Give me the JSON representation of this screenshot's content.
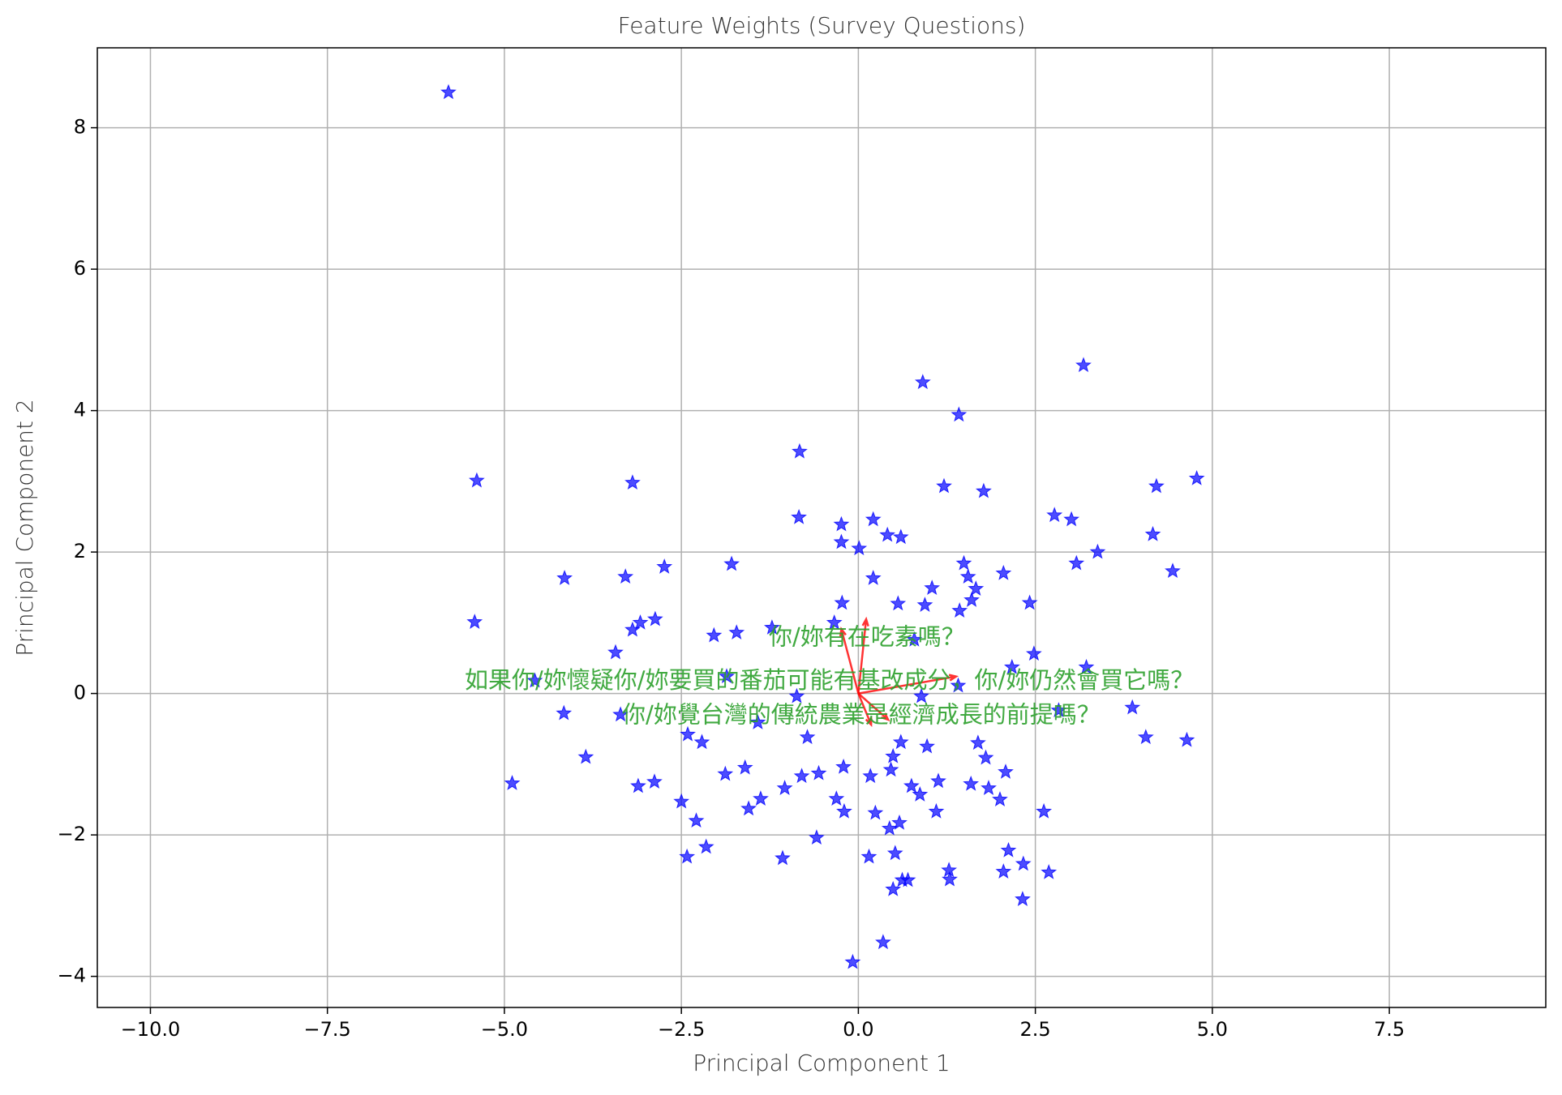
{
  "chart_data": {
    "type": "scatter",
    "title": "Feature Weights (Survey Questions)",
    "x_label": "Principal Component 1",
    "y_label": "Principal Component 2",
    "xlim": [
      -10.75,
      9.71
    ],
    "ylim": [
      -4.44,
      9.13
    ],
    "xticks": [
      {
        "value": -10,
        "label": "−10.0"
      },
      {
        "value": -7.5,
        "label": "−7.5"
      },
      {
        "value": -5,
        "label": "−5.0"
      },
      {
        "value": -2.5,
        "label": "−2.5"
      },
      {
        "value": 0,
        "label": "0.0"
      },
      {
        "value": 2.5,
        "label": "2.5"
      },
      {
        "value": 5,
        "label": "5.0"
      },
      {
        "value": 7.5,
        "label": "7.5"
      }
    ],
    "yticks": [
      {
        "value": -4,
        "label": "−4"
      },
      {
        "value": -2,
        "label": "−2"
      },
      0,
      2,
      4,
      6,
      8
    ],
    "grid": true,
    "series": [
      {
        "color": "#0000ff",
        "x": [
          -5.79,
          -5.39,
          -5.42,
          -4.89,
          -4.15,
          -4.16,
          -3.85,
          -3.43,
          -3.29,
          -3.19,
          -3.19,
          -3.11,
          -3.08,
          -2.88,
          -2.87,
          -2.74,
          -2.5,
          -2.42,
          -2.29,
          -2.21,
          -2.15,
          -2.04,
          -1.88,
          -1.79,
          -1.72,
          -1.6,
          -1.55,
          -1.38,
          -1.22,
          -1.07,
          -1.04,
          -0.83,
          -0.84,
          -0.8,
          -0.59,
          -0.56,
          -0.34,
          -0.31,
          -0.24,
          -0.24,
          -0.23,
          -0.21,
          -0.2,
          -0.08,
          0.01,
          0.15,
          0.17,
          0.21,
          0.21,
          0.24,
          0.35,
          0.41,
          0.44,
          0.46,
          0.49,
          0.52,
          0.49,
          0.56,
          0.6,
          0.6,
          0.62,
          0.58,
          0.7,
          0.75,
          0.79,
          0.87,
          0.91,
          0.94,
          0.97,
          1.04,
          1.1,
          1.13,
          1.21,
          1.28,
          1.29,
          1.42,
          1.43,
          1.49,
          1.55,
          1.59,
          1.6,
          1.66,
          1.69,
          1.77,
          1.8,
          1.84,
          2.0,
          2.05,
          2.05,
          2.08,
          2.12,
          2.33,
          2.32,
          2.42,
          2.62,
          2.69,
          2.77,
          3.01,
          3.08,
          3.18,
          3.22,
          3.38,
          3.87,
          4.06,
          4.16,
          4.21,
          4.44,
          4.64,
          4.78,
          -4.57,
          -3.36,
          -2.41,
          -1.42,
          -0.72,
          2.17,
          2.48,
          1.41,
          -0.87,
          0.89,
          2.83,
          -1.86
        ],
        "values": [
          8.5,
          3.01,
          1.01,
          -1.27,
          1.63,
          -0.28,
          -0.9,
          0.58,
          1.65,
          2.98,
          0.9,
          -1.31,
          1.0,
          -1.25,
          1.05,
          1.79,
          -1.53,
          -2.31,
          -1.8,
          -0.69,
          -2.17,
          0.82,
          -1.14,
          1.83,
          0.86,
          -1.05,
          -1.63,
          -1.49,
          0.93,
          -2.33,
          -1.34,
          3.42,
          2.49,
          -1.17,
          -2.04,
          -1.13,
          1.0,
          -1.49,
          2.39,
          2.14,
          1.28,
          -1.04,
          -1.67,
          -3.8,
          2.05,
          -2.31,
          -1.17,
          2.46,
          1.63,
          -1.69,
          -3.52,
          2.24,
          -1.91,
          -1.08,
          -0.89,
          -2.26,
          -2.77,
          1.27,
          2.21,
          -0.69,
          -2.64,
          -1.83,
          -2.64,
          -1.31,
          0.76,
          -1.43,
          4.4,
          1.25,
          -0.75,
          1.49,
          -1.67,
          -1.24,
          2.93,
          -2.5,
          -2.63,
          3.94,
          1.17,
          1.84,
          1.65,
          -1.28,
          1.32,
          1.48,
          -0.7,
          2.86,
          -0.91,
          -1.34,
          -1.5,
          1.7,
          -2.52,
          -1.11,
          -2.22,
          -2.41,
          -2.91,
          1.28,
          -1.67,
          -2.53,
          2.52,
          2.46,
          1.84,
          4.64,
          0.37,
          2.0,
          -0.2,
          -0.62,
          2.25,
          2.93,
          1.73,
          -0.66,
          3.04,
          0.18,
          -0.3,
          -0.58,
          -0.41,
          -0.62,
          0.37,
          0.56,
          0.11,
          -0.04,
          -0.04,
          -0.24,
          0.24
        ]
      }
    ],
    "loadings": {
      "color": "#ff0000",
      "x": [
        -0.24,
        0.11,
        0.42,
        0.18,
        1.38
      ],
      "y": [
        0.91,
        1.05,
        -0.37,
        -0.44,
        0.24
      ]
    },
    "annotation_color": "#2ca02c",
    "annotations": [
      {
        "text": "如果你/妳懷疑你/妳要買的番茄可能有基改成分，你/妳仍然會買它嗎？",
        "x": -0.41,
        "y": 0.17
      },
      {
        "text": "你/妳覺台灣的傳統農業是經濟成長的前提嗎？",
        "x": 0.04,
        "y": -0.32
      },
      {
        "text": "你/妳有在吃素嗎？",
        "x": 0.12,
        "y": 0.78
      }
    ]
  }
}
